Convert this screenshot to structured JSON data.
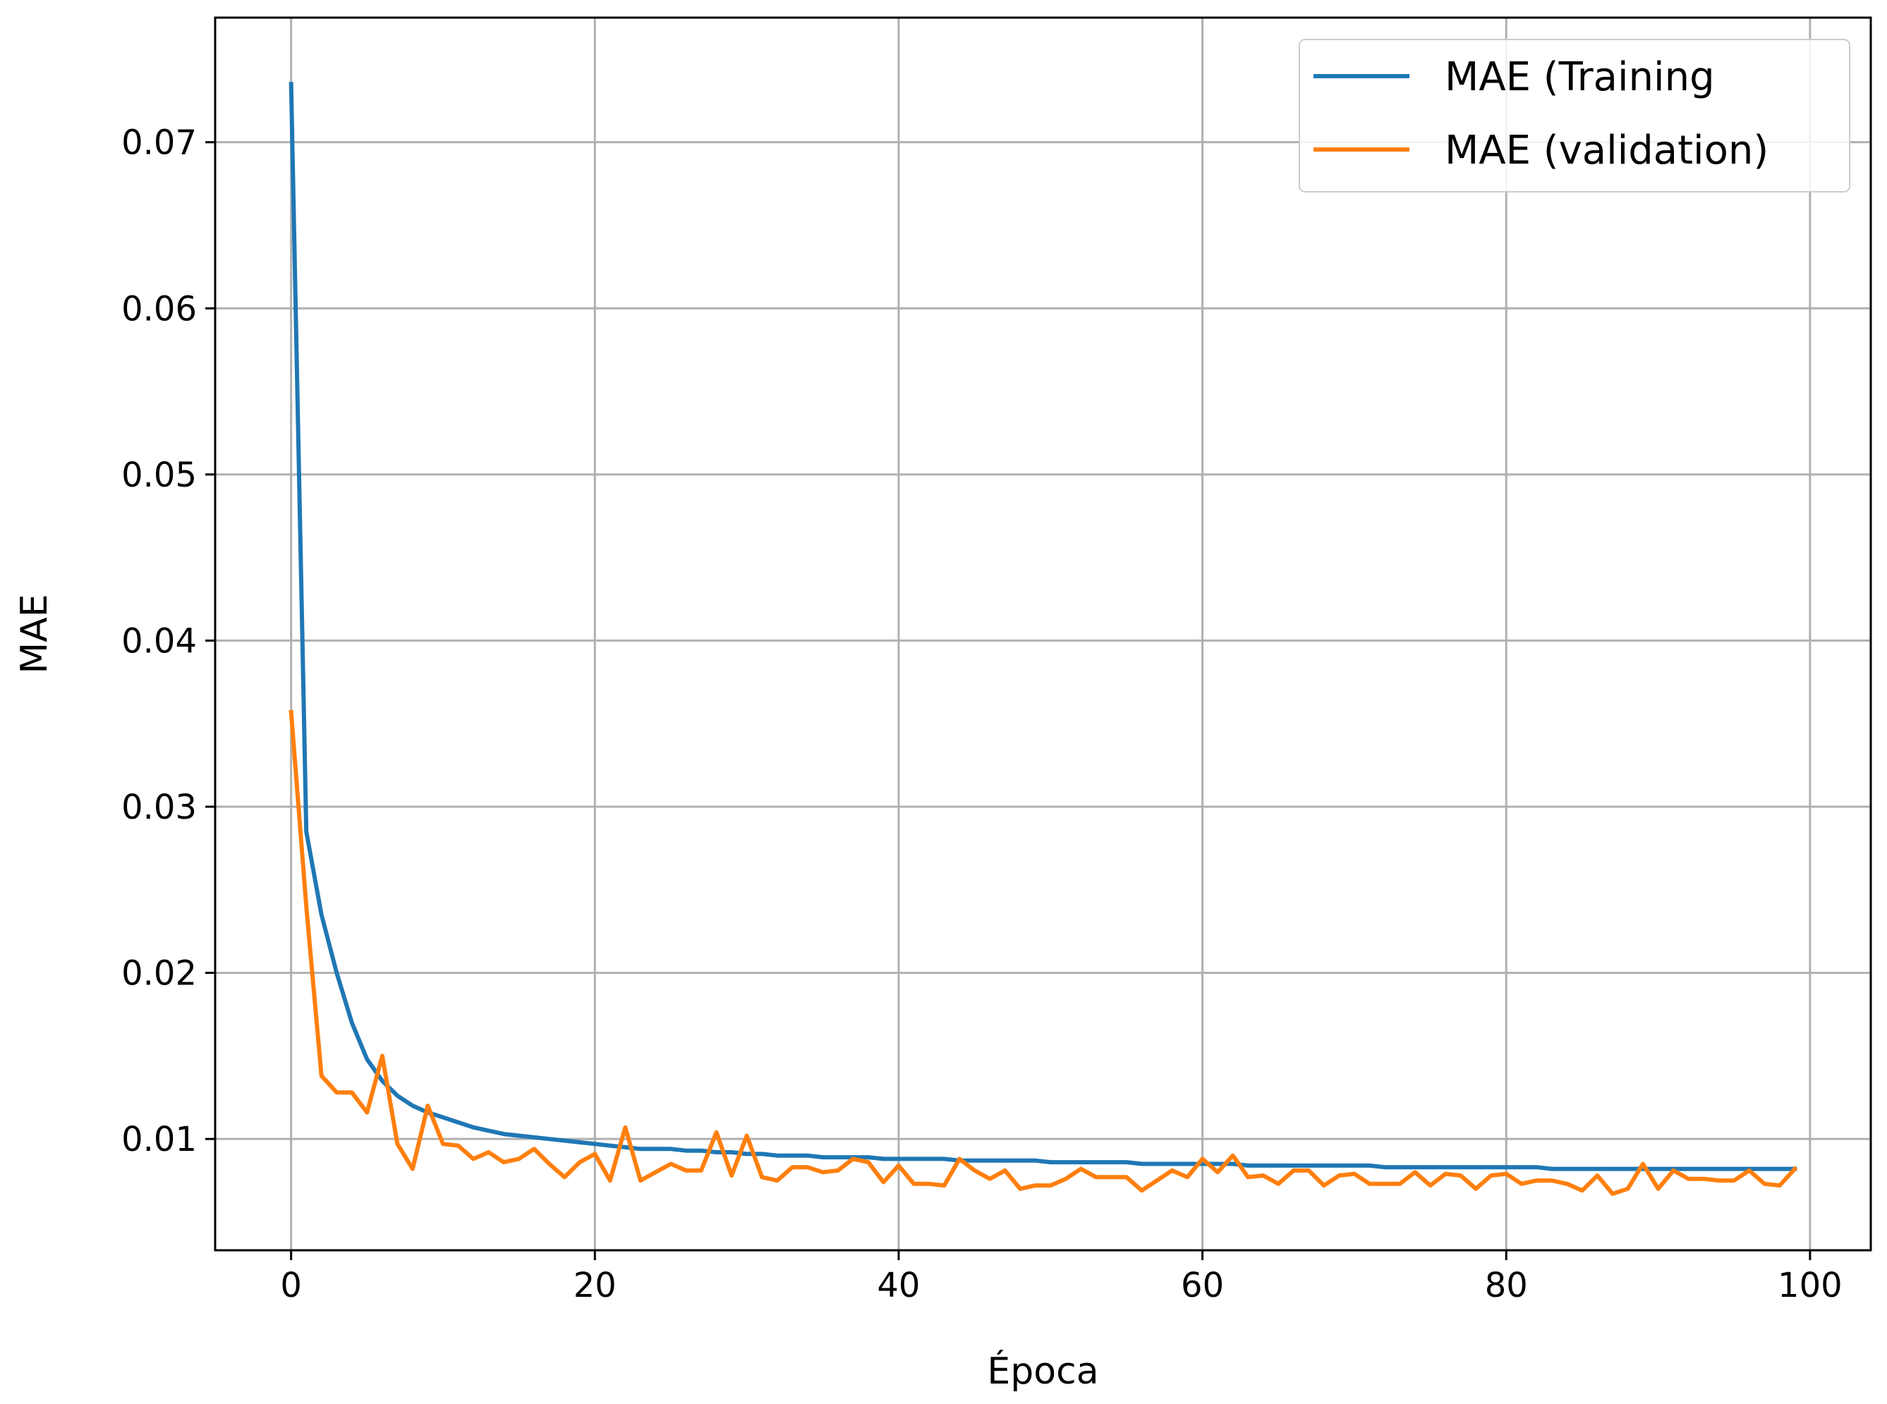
{
  "chart_data": {
    "type": "line",
    "title": "",
    "xlabel": "Época",
    "ylabel": "MAE",
    "xlim": [
      -5,
      104
    ],
    "ylim": [
      0.0033,
      0.0775
    ],
    "xticks": [
      0,
      20,
      40,
      60,
      80,
      100
    ],
    "yticks": [
      0.01,
      0.02,
      0.03,
      0.04,
      0.05,
      0.06,
      0.07
    ],
    "xtick_labels": [
      "0",
      "20",
      "40",
      "60",
      "80",
      "100"
    ],
    "ytick_labels": [
      "0.01",
      "0.02",
      "0.03",
      "0.04",
      "0.05",
      "0.06",
      "0.07"
    ],
    "grid": true,
    "legend_position": "top-right",
    "series": [
      {
        "name": "MAE (Training",
        "color": "#1f77b4",
        "x": [
          0,
          1,
          2,
          3,
          4,
          5,
          6,
          7,
          8,
          9,
          10,
          11,
          12,
          13,
          14,
          15,
          16,
          17,
          18,
          19,
          20,
          21,
          22,
          23,
          24,
          25,
          26,
          27,
          28,
          29,
          30,
          31,
          32,
          33,
          34,
          35,
          36,
          37,
          38,
          39,
          40,
          41,
          42,
          43,
          44,
          45,
          46,
          47,
          48,
          49,
          50,
          51,
          52,
          53,
          54,
          55,
          56,
          57,
          58,
          59,
          60,
          61,
          62,
          63,
          64,
          65,
          66,
          67,
          68,
          69,
          70,
          71,
          72,
          73,
          74,
          75,
          76,
          77,
          78,
          79,
          80,
          81,
          82,
          83,
          84,
          85,
          86,
          87,
          88,
          89,
          90,
          91,
          92,
          93,
          94,
          95,
          96,
          97,
          98,
          99
        ],
        "y": [
          0.0735,
          0.0285,
          0.0235,
          0.02,
          0.017,
          0.0148,
          0.0135,
          0.0126,
          0.012,
          0.0116,
          0.0113,
          0.011,
          0.0107,
          0.0105,
          0.0103,
          0.0102,
          0.0101,
          0.01,
          0.0099,
          0.0098,
          0.0097,
          0.0096,
          0.0095,
          0.0094,
          0.0094,
          0.0094,
          0.0093,
          0.0093,
          0.0092,
          0.0092,
          0.0091,
          0.0091,
          0.009,
          0.009,
          0.009,
          0.0089,
          0.0089,
          0.0089,
          0.0089,
          0.0088,
          0.0088,
          0.0088,
          0.0088,
          0.0088,
          0.0087,
          0.0087,
          0.0087,
          0.0087,
          0.0087,
          0.0087,
          0.0086,
          0.0086,
          0.0086,
          0.0086,
          0.0086,
          0.0086,
          0.0085,
          0.0085,
          0.0085,
          0.0085,
          0.0085,
          0.0085,
          0.0085,
          0.0084,
          0.0084,
          0.0084,
          0.0084,
          0.0084,
          0.0084,
          0.0084,
          0.0084,
          0.0084,
          0.0083,
          0.0083,
          0.0083,
          0.0083,
          0.0083,
          0.0083,
          0.0083,
          0.0083,
          0.0083,
          0.0083,
          0.0083,
          0.0082,
          0.0082,
          0.0082,
          0.0082,
          0.0082,
          0.0082,
          0.0082,
          0.0082,
          0.0082,
          0.0082,
          0.0082,
          0.0082,
          0.0082,
          0.0082,
          0.0082,
          0.0082,
          0.0082
        ]
      },
      {
        "name": "MAE (validation)",
        "color": "#ff7f0e",
        "x": [
          0,
          1,
          2,
          3,
          4,
          5,
          6,
          7,
          8,
          9,
          10,
          11,
          12,
          13,
          14,
          15,
          16,
          17,
          18,
          19,
          20,
          21,
          22,
          23,
          24,
          25,
          26,
          27,
          28,
          29,
          30,
          31,
          32,
          33,
          34,
          35,
          36,
          37,
          38,
          39,
          40,
          41,
          42,
          43,
          44,
          45,
          46,
          47,
          48,
          49,
          50,
          51,
          52,
          53,
          54,
          55,
          56,
          57,
          58,
          59,
          60,
          61,
          62,
          63,
          64,
          65,
          66,
          67,
          68,
          69,
          70,
          71,
          72,
          73,
          74,
          75,
          76,
          77,
          78,
          79,
          80,
          81,
          82,
          83,
          84,
          85,
          86,
          87,
          88,
          89,
          90,
          91,
          92,
          93,
          94,
          95,
          96,
          97,
          98,
          99
        ],
        "y": [
          0.0357,
          0.024,
          0.0138,
          0.0128,
          0.0128,
          0.0116,
          0.015,
          0.0097,
          0.0082,
          0.012,
          0.0097,
          0.0096,
          0.0088,
          0.0092,
          0.0086,
          0.0088,
          0.0094,
          0.0085,
          0.0077,
          0.0086,
          0.0091,
          0.0075,
          0.0107,
          0.0075,
          0.008,
          0.0085,
          0.0081,
          0.0081,
          0.0104,
          0.0078,
          0.0102,
          0.0077,
          0.0075,
          0.0083,
          0.0083,
          0.008,
          0.0081,
          0.0088,
          0.0086,
          0.0074,
          0.0084,
          0.0073,
          0.0073,
          0.0072,
          0.0088,
          0.0081,
          0.0076,
          0.0081,
          0.007,
          0.0072,
          0.0072,
          0.0076,
          0.0082,
          0.0077,
          0.0077,
          0.0077,
          0.0069,
          0.0075,
          0.0081,
          0.0077,
          0.0088,
          0.008,
          0.009,
          0.0077,
          0.0078,
          0.0073,
          0.0081,
          0.0081,
          0.0072,
          0.0078,
          0.0079,
          0.0073,
          0.0073,
          0.0073,
          0.008,
          0.0072,
          0.0079,
          0.0078,
          0.007,
          0.0078,
          0.0079,
          0.0073,
          0.0075,
          0.0075,
          0.0073,
          0.0069,
          0.0078,
          0.0067,
          0.007,
          0.0085,
          0.007,
          0.0081,
          0.0076,
          0.0076,
          0.0075,
          0.0075,
          0.0081,
          0.0073,
          0.0072,
          0.0082
        ]
      }
    ]
  }
}
